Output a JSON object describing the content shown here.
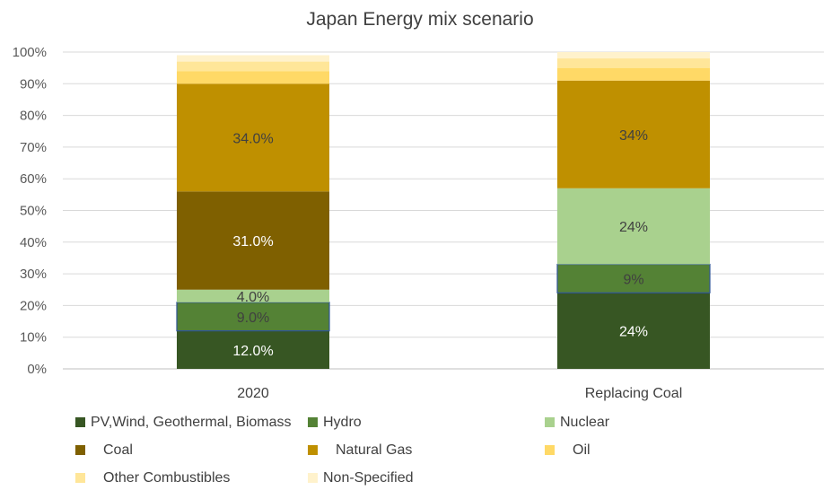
{
  "chart_data": {
    "type": "bar",
    "stacked": true,
    "title": "Japan Energy mix scenario",
    "xlabel": "",
    "ylabel": "",
    "ylim": [
      0,
      100
    ],
    "y_ticks": [
      "0%",
      "10%",
      "20%",
      "30%",
      "40%",
      "50%",
      "60%",
      "70%",
      "80%",
      "90%",
      "100%"
    ],
    "categories": [
      "2020",
      "Replacing Coal"
    ],
    "grid": true,
    "legend_position": "bottom",
    "series": [
      {
        "name": "PV,Wind, Geothermal, Biomass",
        "color": "#375623",
        "label_color": "#ffffff",
        "values": [
          12,
          24
        ],
        "labels": [
          "12.0%",
          "24%"
        ]
      },
      {
        "name": "Hydro",
        "color": "#548235",
        "label_color": "#404040",
        "values": [
          9,
          9
        ],
        "labels": [
          "9.0%",
          "9%"
        ]
      },
      {
        "name": "Nuclear",
        "color": "#a9d18e",
        "label_color": "#404040",
        "values": [
          4,
          24
        ],
        "labels": [
          "4.0%",
          "24%"
        ]
      },
      {
        "name": "Coal",
        "color": "#7f6000",
        "label_color": "#ffffff",
        "values": [
          31,
          0
        ],
        "labels": [
          "31.0%",
          ""
        ]
      },
      {
        "name": "Natural Gas",
        "color": "#bf9000",
        "label_color": "#404040",
        "values": [
          34,
          34
        ],
        "labels": [
          "34.0%",
          "34%"
        ]
      },
      {
        "name": "Oil",
        "color": "#ffd966",
        "label_color": "#404040",
        "values": [
          4,
          4
        ],
        "labels": [
          "",
          ""
        ]
      },
      {
        "name": "Other Combustibles",
        "color": "#ffe699",
        "label_color": "#404040",
        "values": [
          3,
          3
        ],
        "labels": [
          "",
          ""
        ]
      },
      {
        "name": "Non-Specified",
        "color": "#fff2cc",
        "label_color": "#404040",
        "values": [
          2,
          2
        ],
        "labels": [
          "",
          ""
        ]
      }
    ]
  }
}
